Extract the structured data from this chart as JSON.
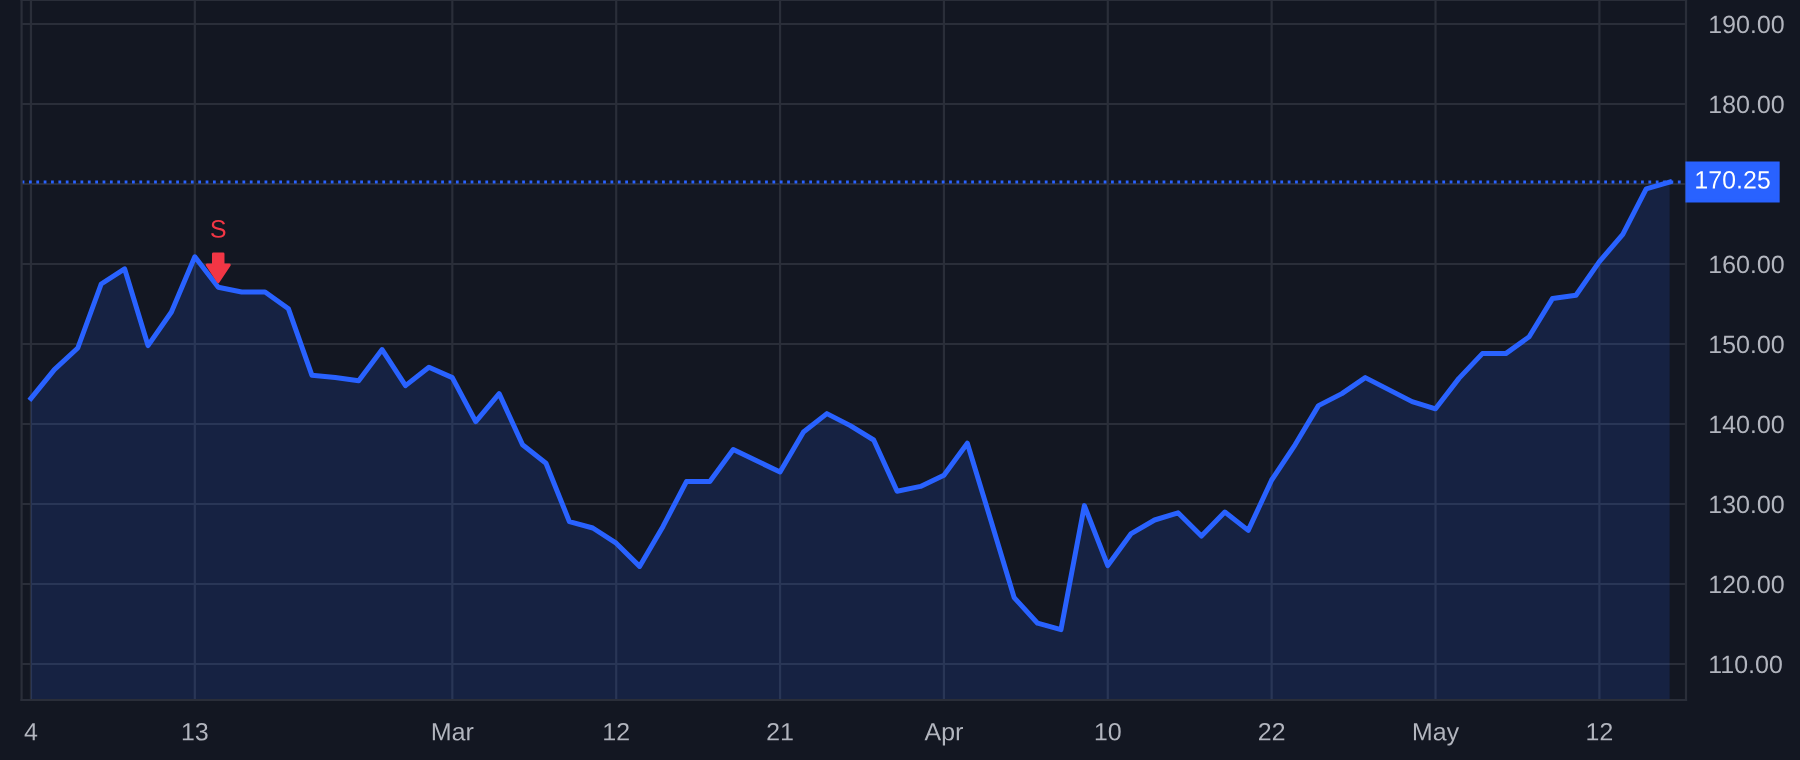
{
  "chart_data": {
    "type": "area",
    "categories": [
      "4",
      null,
      null,
      null,
      null,
      null,
      null,
      "13",
      null,
      null,
      null,
      null,
      null,
      null,
      null,
      null,
      null,
      null,
      "Mar",
      null,
      null,
      null,
      null,
      null,
      null,
      "12",
      null,
      null,
      null,
      null,
      null,
      null,
      "21",
      null,
      null,
      null,
      null,
      null,
      null,
      "Apr",
      null,
      null,
      null,
      null,
      null,
      null,
      "10",
      null,
      null,
      null,
      null,
      null,
      null,
      "22",
      null,
      null,
      null,
      null,
      null,
      null,
      "May",
      null,
      null,
      null,
      null,
      null,
      null,
      "12",
      null,
      null,
      null
    ],
    "series": [
      {
        "color": "#2962ff",
        "values": [
          143.2,
          146.8,
          149.5,
          157.5,
          159.4,
          149.8,
          154.0,
          160.9,
          157.1,
          156.5,
          156.5,
          154.4,
          146.1,
          145.8,
          145.4,
          149.3,
          144.8,
          147.1,
          145.8,
          140.3,
          143.8,
          137.4,
          135.1,
          127.8,
          127.0,
          125.1,
          122.2,
          127.2,
          132.8,
          132.8,
          136.8,
          135.4,
          134.0,
          139.0,
          141.3,
          139.8,
          138.0,
          131.6,
          132.2,
          133.6,
          137.6,
          128.0,
          118.3,
          115.1,
          114.3,
          129.8,
          122.3,
          126.3,
          128.0,
          128.9,
          126.0,
          129.0,
          126.7,
          133.0,
          137.4,
          142.3,
          143.8,
          145.8,
          144.3,
          142.8,
          141.9,
          145.7,
          148.8,
          148.8,
          150.9,
          155.7,
          156.1,
          160.3,
          163.7,
          169.4,
          170.25
        ]
      }
    ],
    "ylim": [
      105.5,
      193
    ],
    "yticks": [
      {
        "value": 110,
        "label": "110.00"
      },
      {
        "value": 120,
        "label": "120.00"
      },
      {
        "value": 130,
        "label": "130.00"
      },
      {
        "value": 140,
        "label": "140.00"
      },
      {
        "value": 150,
        "label": "150.00"
      },
      {
        "value": 160,
        "label": "160.00"
      },
      {
        "value": 170,
        "label": null
      },
      {
        "value": 180,
        "label": "180.00"
      },
      {
        "value": 190,
        "label": "190.00"
      }
    ],
    "grid": true,
    "ref_lines": [
      {
        "axis": "y",
        "value": 170.25,
        "label": "170.25",
        "color": "#2962ff",
        "line_style": "dotted"
      }
    ],
    "annotations": [
      {
        "text": "S",
        "y": 157.1
      }
    ]
  }
}
